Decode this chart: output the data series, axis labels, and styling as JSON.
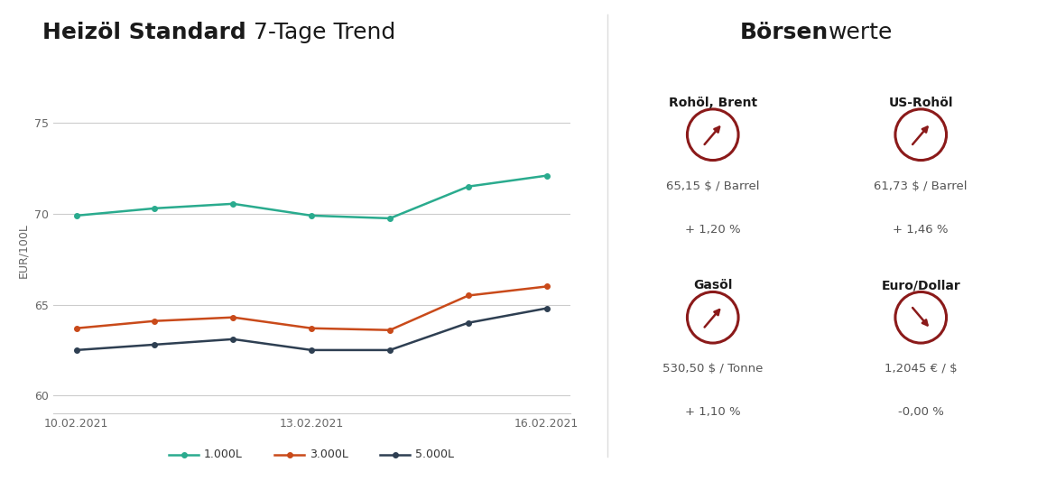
{
  "title_bold": "Heizöl Standard",
  "title_normal": " 7-Tage Trend",
  "right_title_bold": "Börsen",
  "right_title_normal": "werte",
  "ylabel": "EUR/100L",
  "ylim": [
    59,
    77
  ],
  "yticks": [
    60,
    65,
    70,
    75
  ],
  "x_labels": [
    "10.02.2021",
    "13.02.2021",
    "16.02.2021"
  ],
  "x_positions": [
    0,
    1,
    2,
    3,
    4,
    5,
    6
  ],
  "x_tick_positions": [
    0,
    3,
    6
  ],
  "series": [
    {
      "label": "1.000L",
      "color": "#2aab8e",
      "marker": "o",
      "markersize": 4,
      "linewidth": 1.8,
      "values": [
        69.9,
        70.3,
        70.55,
        69.9,
        69.75,
        71.5,
        72.1
      ]
    },
    {
      "label": "3.000L",
      "color": "#c94a1a",
      "marker": "o",
      "markersize": 4,
      "linewidth": 1.8,
      "values": [
        63.7,
        64.1,
        64.3,
        63.7,
        63.6,
        65.5,
        66.0
      ]
    },
    {
      "label": "5.000L",
      "color": "#2e3f52",
      "marker": "o",
      "markersize": 4,
      "linewidth": 1.8,
      "values": [
        62.5,
        62.8,
        63.1,
        62.5,
        62.5,
        64.0,
        64.8
      ]
    }
  ],
  "borse_items": [
    {
      "title": "Rohöl, Brent",
      "value": "65,15 $ / Barrel",
      "change": "+ 1,20 %",
      "direction": "up",
      "col": 0,
      "row": 0
    },
    {
      "title": "US-Rohöl",
      "value": "61,73 $ / Barrel",
      "change": "+ 1,46 %",
      "direction": "up",
      "col": 1,
      "row": 0
    },
    {
      "title": "Gasöl",
      "value": "530,50 $ / Tonne",
      "change": "+ 1,10 %",
      "direction": "up",
      "col": 0,
      "row": 1
    },
    {
      "title": "Euro/Dollar",
      "value": "1,2045 € / $",
      "change": "-0,00 %",
      "direction": "down",
      "col": 1,
      "row": 1
    }
  ],
  "arrow_circle_color": "#8b1a1a",
  "background_color": "#ffffff",
  "grid_color": "#cccccc",
  "title_fontsize": 18,
  "axis_label_fontsize": 9,
  "legend_fontsize": 9,
  "tick_fontsize": 9
}
